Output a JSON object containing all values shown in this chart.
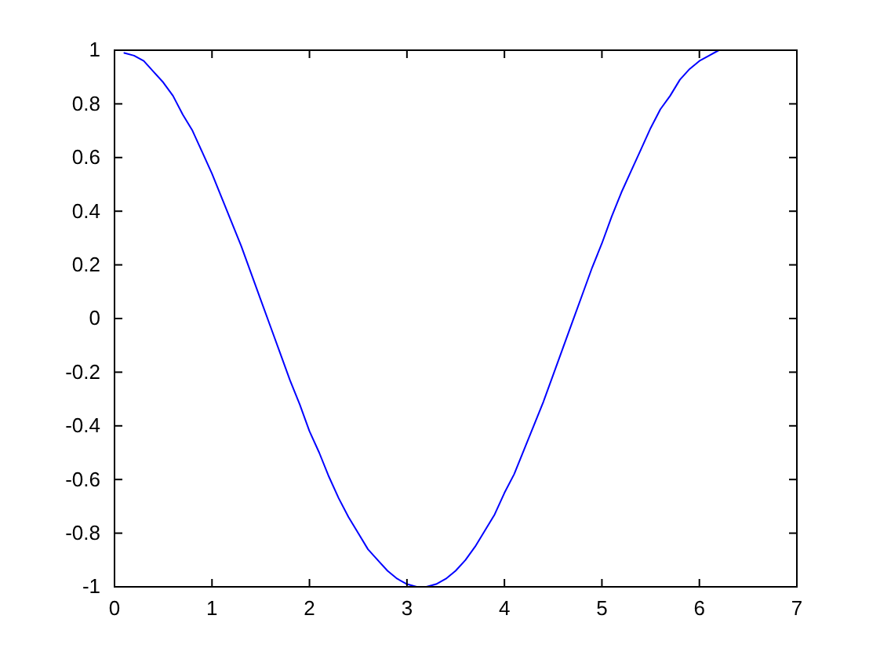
{
  "chart_data": {
    "type": "line",
    "x": [
      0.1,
      0.2,
      0.3,
      0.4,
      0.5,
      0.6,
      0.7,
      0.8,
      0.9,
      1.0,
      1.1,
      1.2,
      1.3,
      1.4,
      1.5,
      1.6,
      1.7,
      1.8,
      1.9,
      2.0,
      2.1,
      2.2,
      2.3,
      2.4,
      2.5,
      2.6,
      2.7,
      2.8,
      2.9,
      3.0,
      3.1,
      3.2,
      3.3,
      3.4,
      3.5,
      3.6,
      3.7,
      3.8,
      3.9,
      4.0,
      4.1,
      4.2,
      4.3,
      4.4,
      4.5,
      4.6,
      4.7,
      4.8,
      4.9,
      5.0,
      5.1,
      5.2,
      5.3,
      5.4,
      5.5,
      5.6,
      5.7,
      5.8,
      5.9,
      6.0,
      6.1,
      6.2
    ],
    "series": [
      {
        "color": "#0000ff",
        "values": [
          0.99,
          0.98,
          0.96,
          0.92,
          0.88,
          0.83,
          0.76,
          0.7,
          0.62,
          0.54,
          0.45,
          0.36,
          0.27,
          0.17,
          0.07,
          -0.03,
          -0.13,
          -0.23,
          -0.32,
          -0.42,
          -0.5,
          -0.59,
          -0.67,
          -0.74,
          -0.8,
          -0.86,
          -0.9,
          -0.94,
          -0.97,
          -0.99,
          -1.0,
          -1.0,
          -0.99,
          -0.97,
          -0.94,
          -0.9,
          -0.85,
          -0.79,
          -0.73,
          -0.65,
          -0.58,
          -0.49,
          -0.4,
          -0.31,
          -0.21,
          -0.11,
          -0.01,
          0.09,
          0.19,
          0.28,
          0.38,
          0.47,
          0.55,
          0.63,
          0.71,
          0.78,
          0.83,
          0.89,
          0.93,
          0.96,
          0.98,
          1.0
        ]
      }
    ],
    "xlim": [
      0,
      7
    ],
    "xticks": [
      0,
      1,
      2,
      3,
      4,
      5,
      6,
      7
    ],
    "ylim": [
      -1,
      1
    ],
    "yticks": [
      -1,
      -0.8,
      -0.6,
      -0.4,
      -0.2,
      0,
      0.2,
      0.4,
      0.6,
      0.8,
      1
    ],
    "grid": false,
    "marker": "none",
    "line_style": "solid"
  }
}
